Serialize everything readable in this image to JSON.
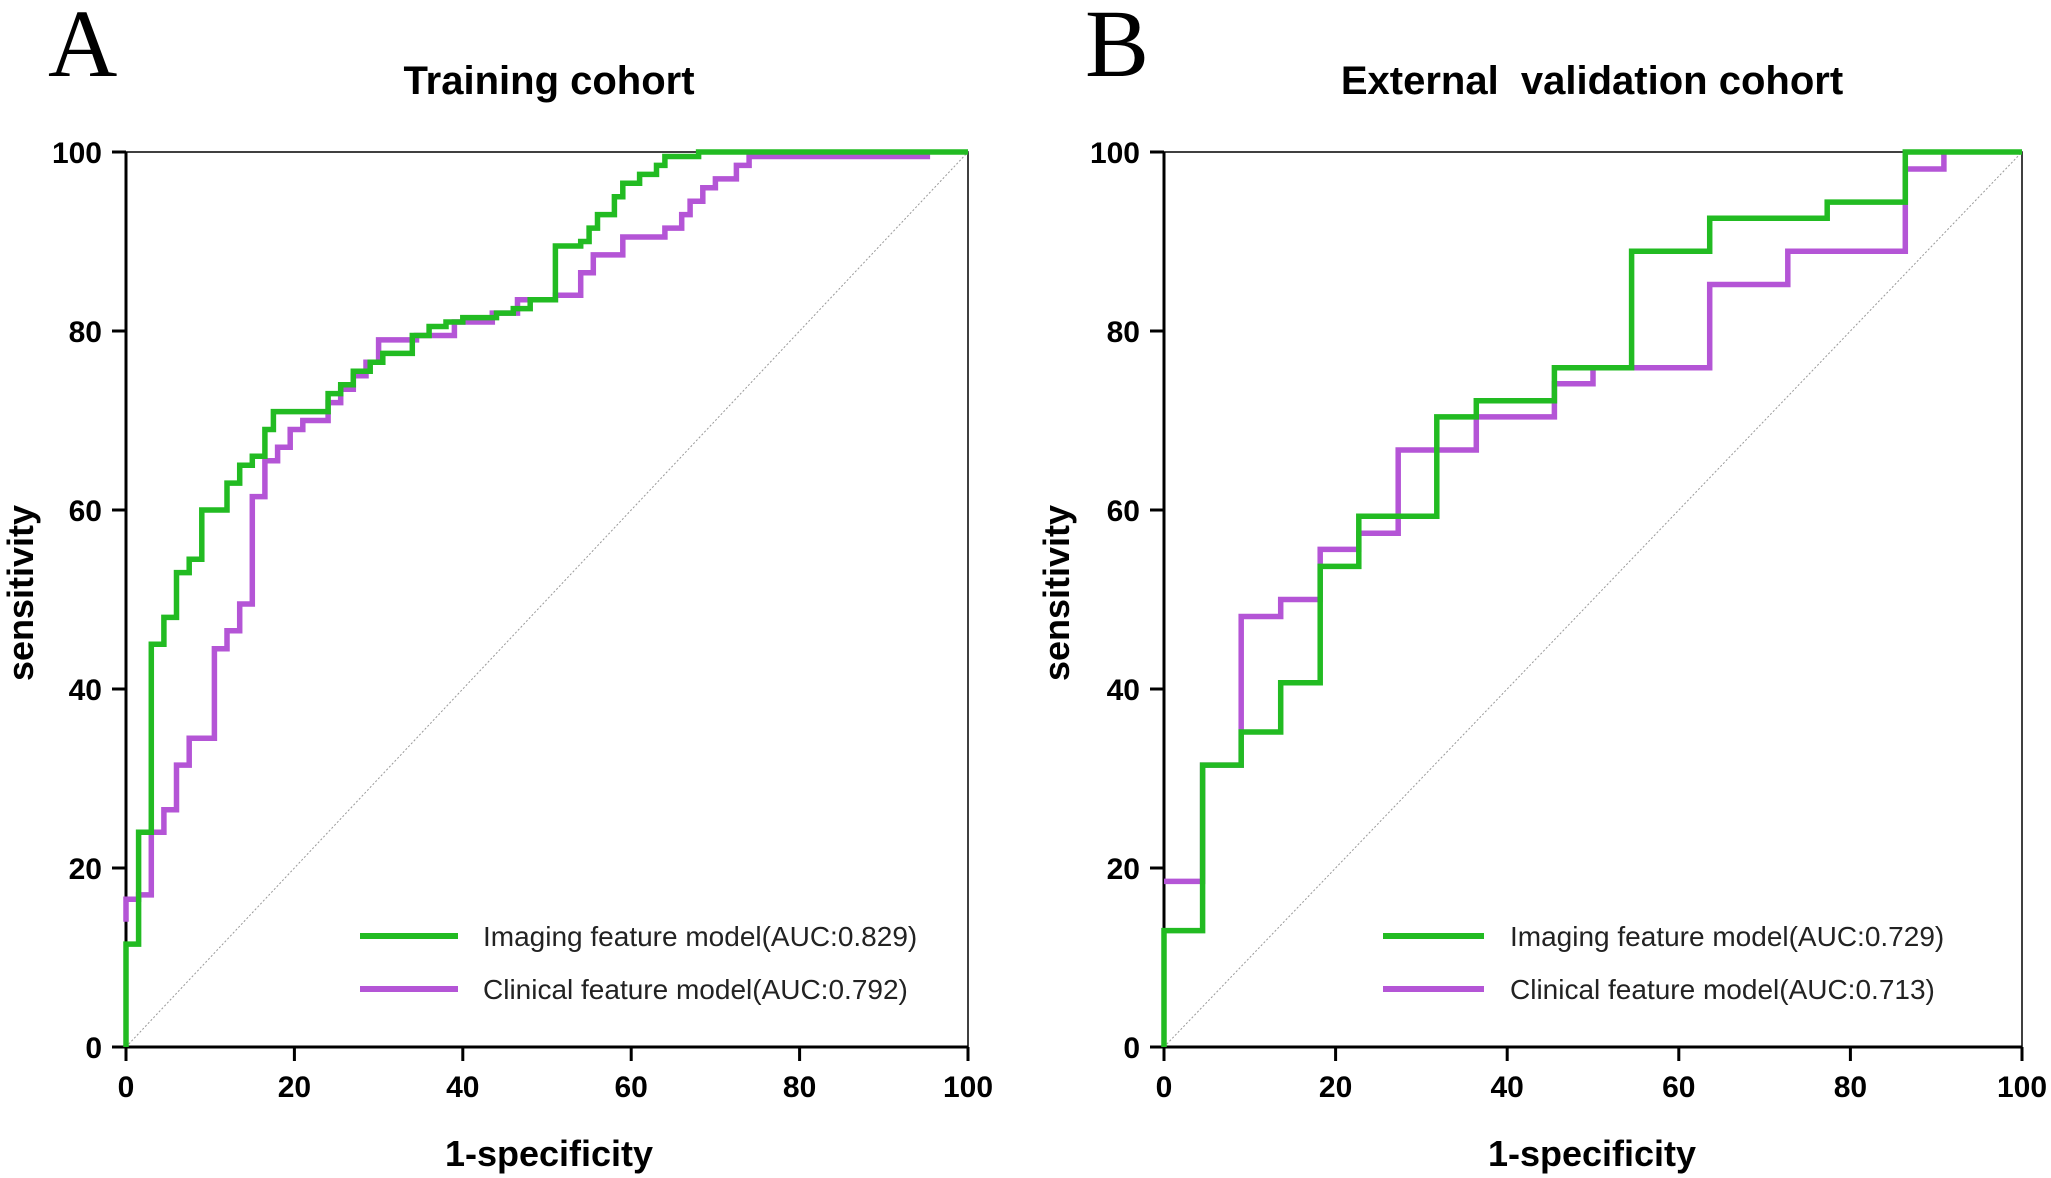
{
  "chart_data": [
    {
      "panel": "A",
      "type": "line",
      "title": "Training cohort",
      "xlabel": "1-specificity",
      "ylabel": "sensitivity",
      "xlim": [
        0,
        100
      ],
      "ylim": [
        0,
        100
      ],
      "xticks": [
        0,
        20,
        40,
        60,
        80,
        100
      ],
      "yticks": [
        0,
        20,
        40,
        60,
        80,
        100
      ],
      "diagonal_reference": true,
      "series": [
        {
          "name": "Imaging feature model(AUC:0.829)",
          "color": "#22bb22",
          "step_points": [
            [
              0,
              0
            ],
            [
              0,
              11.5
            ],
            [
              1.5,
              11.5
            ],
            [
              1.5,
              24
            ],
            [
              3,
              24
            ],
            [
              3,
              45
            ],
            [
              4.5,
              45
            ],
            [
              4.5,
              48
            ],
            [
              6,
              48
            ],
            [
              6,
              53
            ],
            [
              7.5,
              53
            ],
            [
              7.5,
              54.5
            ],
            [
              9,
              54.5
            ],
            [
              9,
              60
            ],
            [
              12,
              60
            ],
            [
              12,
              63
            ],
            [
              13.5,
              63
            ],
            [
              13.5,
              65
            ],
            [
              15,
              65
            ],
            [
              15,
              66
            ],
            [
              16.5,
              66
            ],
            [
              16.5,
              69
            ],
            [
              17.5,
              69
            ],
            [
              17.5,
              71
            ],
            [
              24,
              71
            ],
            [
              24,
              73
            ],
            [
              25.5,
              73
            ],
            [
              25.5,
              74
            ],
            [
              27,
              74
            ],
            [
              27,
              75.5
            ],
            [
              29,
              75.5
            ],
            [
              29,
              76.5
            ],
            [
              30.5,
              76.5
            ],
            [
              30.5,
              77.5
            ],
            [
              34,
              77.5
            ],
            [
              34,
              79.5
            ],
            [
              36,
              79.5
            ],
            [
              36,
              80.5
            ],
            [
              38,
              80.5
            ],
            [
              38,
              81
            ],
            [
              40,
              81
            ],
            [
              40,
              81.5
            ],
            [
              44,
              81.5
            ],
            [
              44,
              82
            ],
            [
              46,
              82
            ],
            [
              46,
              82.5
            ],
            [
              48,
              82.5
            ],
            [
              48,
              83.5
            ],
            [
              51,
              83.5
            ],
            [
              51,
              89.5
            ],
            [
              54,
              89.5
            ],
            [
              54,
              90
            ],
            [
              55,
              90
            ],
            [
              55,
              91.5
            ],
            [
              56,
              91.5
            ],
            [
              56,
              93
            ],
            [
              58,
              93
            ],
            [
              58,
              95
            ],
            [
              59,
              95
            ],
            [
              59,
              96.5
            ],
            [
              61,
              96.5
            ],
            [
              61,
              97.5
            ],
            [
              63,
              97.5
            ],
            [
              63,
              98.5
            ],
            [
              64,
              98.5
            ],
            [
              64,
              99.5
            ],
            [
              68,
              99.5
            ],
            [
              68,
              100
            ],
            [
              100,
              100
            ]
          ]
        },
        {
          "name": "Clinical feature model(AUC:0.792)",
          "color": "#b455d6",
          "step_points": [
            [
              0,
              14
            ],
            [
              0,
              16.5
            ],
            [
              1.5,
              16.5
            ],
            [
              1.5,
              17
            ],
            [
              3,
              17
            ],
            [
              3,
              24
            ],
            [
              4.5,
              24
            ],
            [
              4.5,
              26.5
            ],
            [
              6,
              26.5
            ],
            [
              6,
              31.5
            ],
            [
              7.5,
              31.5
            ],
            [
              7.5,
              34.5
            ],
            [
              10.5,
              34.5
            ],
            [
              10.5,
              44.5
            ],
            [
              12,
              44.5
            ],
            [
              12,
              46.5
            ],
            [
              13.5,
              46.5
            ],
            [
              13.5,
              49.5
            ],
            [
              15,
              49.5
            ],
            [
              15,
              61.5
            ],
            [
              16.5,
              61.5
            ],
            [
              16.5,
              65.5
            ],
            [
              18,
              65.5
            ],
            [
              18,
              67
            ],
            [
              19.5,
              67
            ],
            [
              19.5,
              69
            ],
            [
              21,
              69
            ],
            [
              21,
              70
            ],
            [
              24,
              70
            ],
            [
              24,
              72
            ],
            [
              25.5,
              72
            ],
            [
              25.5,
              73.5
            ],
            [
              27,
              73.5
            ],
            [
              27,
              75
            ],
            [
              28.5,
              75
            ],
            [
              28.5,
              76.5
            ],
            [
              30,
              76.5
            ],
            [
              30,
              79
            ],
            [
              34.5,
              79
            ],
            [
              34.5,
              79.5
            ],
            [
              39,
              79.5
            ],
            [
              39,
              81
            ],
            [
              43.5,
              81
            ],
            [
              43.5,
              82
            ],
            [
              46.5,
              82
            ],
            [
              46.5,
              83.5
            ],
            [
              51,
              83.5
            ],
            [
              51,
              84
            ],
            [
              54,
              84
            ],
            [
              54,
              86.5
            ],
            [
              55.5,
              86.5
            ],
            [
              55.5,
              88.5
            ],
            [
              59,
              88.5
            ],
            [
              59,
              90.5
            ],
            [
              64,
              90.5
            ],
            [
              64,
              91.5
            ],
            [
              66,
              91.5
            ],
            [
              66,
              93
            ],
            [
              67,
              93
            ],
            [
              67,
              94.5
            ],
            [
              68.5,
              94.5
            ],
            [
              68.5,
              96
            ],
            [
              70,
              96
            ],
            [
              70,
              97
            ],
            [
              72.5,
              97
            ],
            [
              72.5,
              98.5
            ],
            [
              74,
              98.5
            ],
            [
              74,
              99.5
            ],
            [
              95.5,
              99.5
            ]
          ]
        }
      ]
    },
    {
      "panel": "B",
      "type": "line",
      "title": "External  validation cohort",
      "xlabel": "1-specificity",
      "ylabel": "sensitivity",
      "xlim": [
        0,
        100
      ],
      "ylim": [
        0,
        100
      ],
      "xticks": [
        0,
        20,
        40,
        60,
        80,
        100
      ],
      "yticks": [
        0,
        20,
        40,
        60,
        80,
        100
      ],
      "diagonal_reference": true,
      "series": [
        {
          "name": "Imaging feature model(AUC:0.729)",
          "color": "#22bb22",
          "step_points": [
            [
              0,
              0
            ],
            [
              0,
              13
            ],
            [
              4.5,
              13
            ],
            [
              4.5,
              31.5
            ],
            [
              9,
              31.5
            ],
            [
              9,
              35.2
            ],
            [
              13.6,
              35.2
            ],
            [
              13.6,
              40.7
            ],
            [
              18.2,
              40.7
            ],
            [
              18.2,
              53.7
            ],
            [
              22.7,
              53.7
            ],
            [
              22.7,
              59.3
            ],
            [
              31.8,
              59.3
            ],
            [
              31.8,
              70.4
            ],
            [
              36.4,
              70.4
            ],
            [
              36.4,
              72.2
            ],
            [
              45.5,
              72.2
            ],
            [
              45.5,
              75.9
            ],
            [
              54.5,
              75.9
            ],
            [
              54.5,
              88.9
            ],
            [
              63.6,
              88.9
            ],
            [
              63.6,
              92.6
            ],
            [
              77.3,
              92.6
            ],
            [
              77.3,
              94.4
            ],
            [
              86.4,
              94.4
            ],
            [
              86.4,
              100
            ],
            [
              100,
              100
            ]
          ]
        },
        {
          "name": "Clinical feature model(AUC:0.713)",
          "color": "#b455d6",
          "step_points": [
            [
              0,
              18.5
            ],
            [
              4.5,
              18.5
            ],
            [
              4.5,
              31.5
            ],
            [
              9,
              31.5
            ],
            [
              9,
              48.1
            ],
            [
              13.6,
              48.1
            ],
            [
              13.6,
              50
            ],
            [
              18.2,
              50
            ],
            [
              18.2,
              55.6
            ],
            [
              22.7,
              55.6
            ],
            [
              22.7,
              57.4
            ],
            [
              27.3,
              57.4
            ],
            [
              27.3,
              66.7
            ],
            [
              36.4,
              66.7
            ],
            [
              36.4,
              70.4
            ],
            [
              45.5,
              70.4
            ],
            [
              45.5,
              74.1
            ],
            [
              50,
              74.1
            ],
            [
              50,
              75.9
            ],
            [
              63.6,
              75.9
            ],
            [
              63.6,
              85.2
            ],
            [
              72.7,
              85.2
            ],
            [
              72.7,
              88.9
            ],
            [
              86.4,
              88.9
            ],
            [
              86.4,
              98.1
            ],
            [
              90.9,
              98.1
            ],
            [
              90.9,
              100
            ]
          ]
        }
      ]
    }
  ]
}
